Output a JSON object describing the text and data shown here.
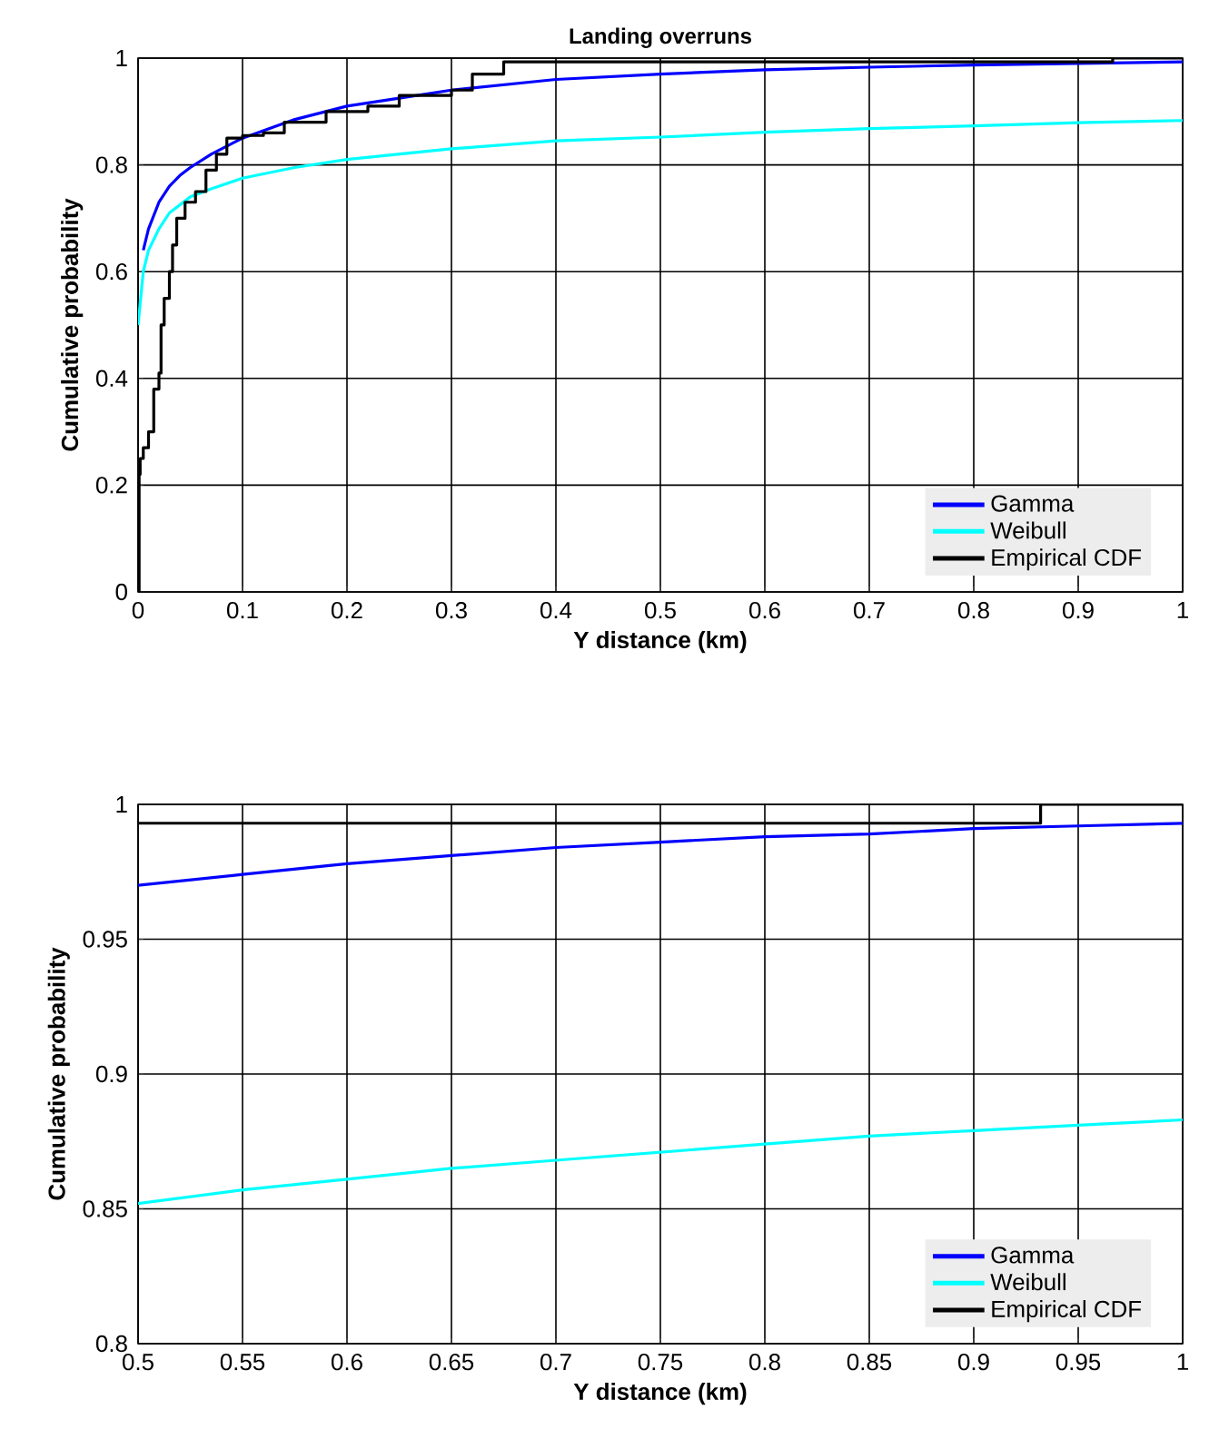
{
  "chart_data": [
    {
      "type": "line",
      "title": "Landing overruns",
      "xlabel": "Y distance (km)",
      "ylabel": "Cumulative probability",
      "xlim": [
        0,
        1
      ],
      "ylim": [
        0,
        1
      ],
      "xticks": [
        0,
        0.1,
        0.2,
        0.3,
        0.4,
        0.5,
        0.6,
        0.7,
        0.8,
        0.9,
        1
      ],
      "yticks": [
        0,
        0.2,
        0.4,
        0.6,
        0.8,
        1
      ],
      "grid": true,
      "legend": "bottom right",
      "series": [
        {
          "name": "Gamma",
          "color": "#0000ff",
          "x": [
            0.005,
            0.01,
            0.02,
            0.03,
            0.04,
            0.05,
            0.07,
            0.1,
            0.15,
            0.2,
            0.25,
            0.3,
            0.4,
            0.5,
            0.6,
            0.7,
            0.8,
            0.9,
            1
          ],
          "values": [
            0.64,
            0.68,
            0.73,
            0.76,
            0.78,
            0.795,
            0.82,
            0.85,
            0.885,
            0.91,
            0.925,
            0.94,
            0.96,
            0.97,
            0.978,
            0.983,
            0.987,
            0.99,
            0.993
          ]
        },
        {
          "name": "Weibull",
          "color": "#00ffff",
          "x": [
            0,
            0.005,
            0.01,
            0.02,
            0.03,
            0.05,
            0.07,
            0.1,
            0.15,
            0.2,
            0.3,
            0.4,
            0.5,
            0.6,
            0.7,
            0.8,
            0.9,
            1
          ],
          "values": [
            0.5,
            0.6,
            0.64,
            0.68,
            0.71,
            0.74,
            0.755,
            0.775,
            0.795,
            0.81,
            0.83,
            0.845,
            0.852,
            0.861,
            0.868,
            0.873,
            0.879,
            0.883
          ]
        },
        {
          "name": "Empirical CDF",
          "color": "#000000",
          "type": "step",
          "x": [
            0,
            0.001,
            0.002,
            0.005,
            0.01,
            0.015,
            0.02,
            0.022,
            0.025,
            0.03,
            0.033,
            0.037,
            0.045,
            0.055,
            0.065,
            0.075,
            0.085,
            0.1,
            0.12,
            0.14,
            0.18,
            0.22,
            0.25,
            0.3,
            0.32,
            0.35,
            0.933,
            1
          ],
          "values": [
            0,
            0.22,
            0.25,
            0.27,
            0.3,
            0.38,
            0.41,
            0.5,
            0.55,
            0.6,
            0.65,
            0.7,
            0.73,
            0.75,
            0.79,
            0.82,
            0.85,
            0.855,
            0.86,
            0.88,
            0.9,
            0.91,
            0.93,
            0.94,
            0.97,
            0.993,
            1,
            1
          ]
        }
      ]
    },
    {
      "type": "line",
      "xlabel": "Y distance (km)",
      "ylabel": "Cumulative probability",
      "xlim": [
        0.5,
        1
      ],
      "ylim": [
        0.8,
        1
      ],
      "xticks": [
        0.5,
        0.55,
        0.6,
        0.65,
        0.7,
        0.75,
        0.8,
        0.85,
        0.9,
        0.95,
        1
      ],
      "yticks": [
        0.8,
        0.85,
        0.9,
        0.95,
        1
      ],
      "grid": true,
      "legend": "bottom right",
      "series": [
        {
          "name": "Gamma",
          "color": "#0000ff",
          "x": [
            0.5,
            0.55,
            0.6,
            0.65,
            0.7,
            0.75,
            0.8,
            0.85,
            0.9,
            0.95,
            1
          ],
          "values": [
            0.97,
            0.974,
            0.978,
            0.981,
            0.984,
            0.986,
            0.988,
            0.989,
            0.991,
            0.992,
            0.993
          ]
        },
        {
          "name": "Weibull",
          "color": "#00ffff",
          "x": [
            0.5,
            0.55,
            0.6,
            0.65,
            0.7,
            0.75,
            0.8,
            0.85,
            0.9,
            0.95,
            1
          ],
          "values": [
            0.852,
            0.857,
            0.861,
            0.865,
            0.868,
            0.871,
            0.874,
            0.877,
            0.879,
            0.881,
            0.883
          ]
        },
        {
          "name": "Empirical CDF",
          "color": "#000000",
          "type": "step",
          "x": [
            0.5,
            0.932,
            1
          ],
          "values": [
            0.993,
            1,
            1
          ]
        }
      ]
    }
  ]
}
